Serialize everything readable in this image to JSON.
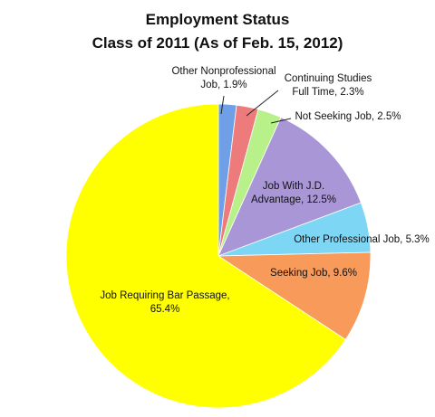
{
  "chart_data": {
    "type": "pie",
    "title": "Employment Status",
    "subtitle": "Class of 2011 (As of Feb. 15, 2012)",
    "slices": [
      {
        "label_lines": [
          "Other Nonprofessional",
          "Job, 1.9%"
        ],
        "value": 1.9,
        "color": "#6f9fe6"
      },
      {
        "label_lines": [
          "Continuing Studies",
          "Full Time, 2.3%"
        ],
        "value": 2.3,
        "color": "#ee7b7b"
      },
      {
        "label_lines": [
          "Not Seeking Job, 2.5%"
        ],
        "value": 2.5,
        "color": "#b8f08a"
      },
      {
        "label_lines": [
          "Job With J.D.",
          "Advantage, 12.5%"
        ],
        "value": 12.5,
        "color": "#a896d6"
      },
      {
        "label_lines": [
          "Other Professional Job, 5.3%"
        ],
        "value": 5.3,
        "color": "#7ed6f5"
      },
      {
        "label_lines": [
          "Seeking Job, 9.6%"
        ],
        "value": 9.6,
        "color": "#f79a5a"
      },
      {
        "label_lines": [
          "Job Requiring Bar Passage,",
          "65.4%"
        ],
        "value": 65.4,
        "color": "#ffff00"
      }
    ]
  }
}
